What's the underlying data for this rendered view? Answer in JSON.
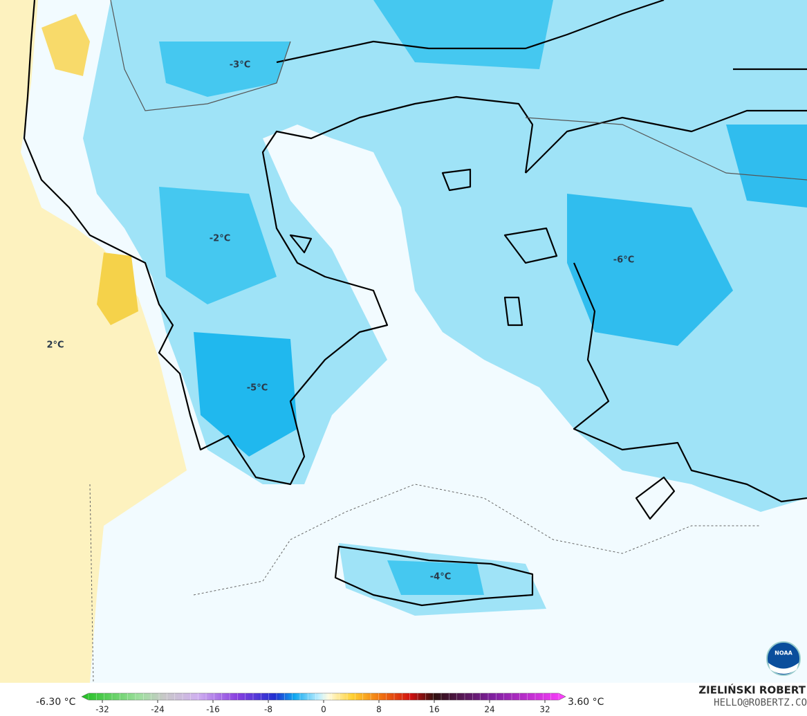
{
  "map": {
    "labels": [
      "-3°C",
      "-2°C",
      "-6°C",
      "-5°C",
      "-4°C",
      "2°C"
    ]
  },
  "colorbar": {
    "min_label": "-6.30 °C",
    "max_label": "3.60 °C",
    "ticks": [
      -32,
      -24,
      -16,
      -8,
      0,
      8,
      16,
      24,
      32
    ],
    "lim": [
      -35,
      35
    ]
  },
  "credits": {
    "author": "ZIELIŃSKI ROBERT",
    "contact": "HELLO@ROBERTZ.CO",
    "logo": "NOAA"
  }
}
